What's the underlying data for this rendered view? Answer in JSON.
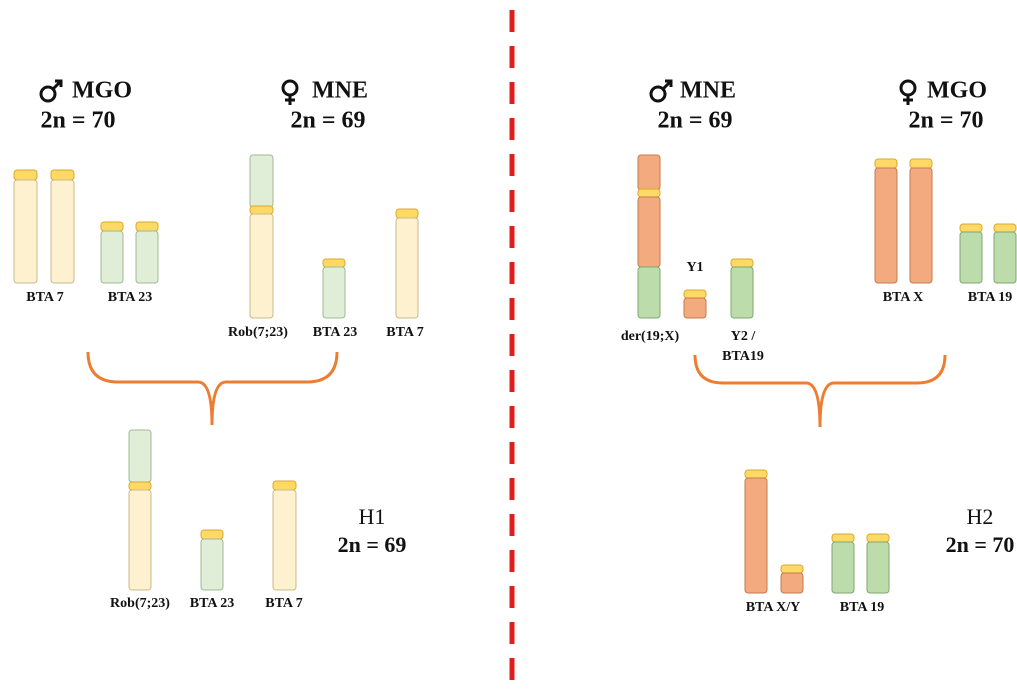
{
  "left": {
    "parent_male": {
      "name": "MGO",
      "karyotype": "2n = 70"
    },
    "parent_female": {
      "name": "MNE",
      "karyotype": "2n = 69"
    },
    "male_chromosomes": [
      "BTA 7",
      "BTA 23"
    ],
    "female_chromosomes": [
      "Rob(7;23)",
      "BTA 23",
      "BTA 7"
    ],
    "hybrid": {
      "name": "H1",
      "karyotype": "2n = 69",
      "chromosomes": [
        "Rob(7;23)",
        "BTA 23",
        "BTA 7"
      ]
    }
  },
  "right": {
    "parent_male": {
      "name": "MNE",
      "karyotype": "2n = 69"
    },
    "parent_female": {
      "name": "MGO",
      "karyotype": "2n = 70"
    },
    "male_chromosomes": [
      "der(19;X)",
      "Y1",
      "Y2 /",
      "BTA19"
    ],
    "female_chromosomes": [
      "BTA X",
      "BTA 19"
    ],
    "hybrid": {
      "name": "H2",
      "karyotype": "2n = 70",
      "chromosomes": [
        "BTA X/Y",
        "BTA 19"
      ]
    }
  }
}
